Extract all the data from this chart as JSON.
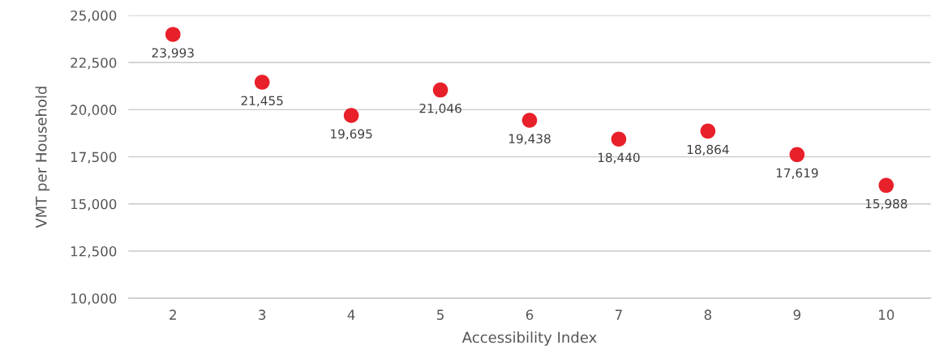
{
  "chart_data": {
    "type": "scatter",
    "xlabel": "Accessibility Index",
    "ylabel": "VMT per Household",
    "categories": [
      "2",
      "3",
      "4",
      "5",
      "6",
      "7",
      "8",
      "9",
      "10"
    ],
    "series": [
      {
        "color": "#e8202a",
        "values": [
          23993,
          21455,
          19695,
          21046,
          19438,
          18440,
          18864,
          17619,
          15988
        ]
      }
    ],
    "value_labels": [
      "23,993",
      "21,455",
      "19,695",
      "21,046",
      "19,438",
      "18,440",
      "18,864",
      "17,619",
      "15,988"
    ],
    "ylim": [
      10000,
      25000
    ],
    "yticks": [
      {
        "value": 10000,
        "label": "10,000"
      },
      {
        "value": 12500,
        "label": "12,500"
      },
      {
        "value": 15000,
        "label": "15,000"
      },
      {
        "value": 17500,
        "label": "17,500"
      },
      {
        "value": 20000,
        "label": "20,000"
      },
      {
        "value": 22500,
        "label": "22,500"
      },
      {
        "value": 25000,
        "label": "25,000"
      }
    ],
    "grid": "y",
    "marker": "circle",
    "legend": false
  }
}
